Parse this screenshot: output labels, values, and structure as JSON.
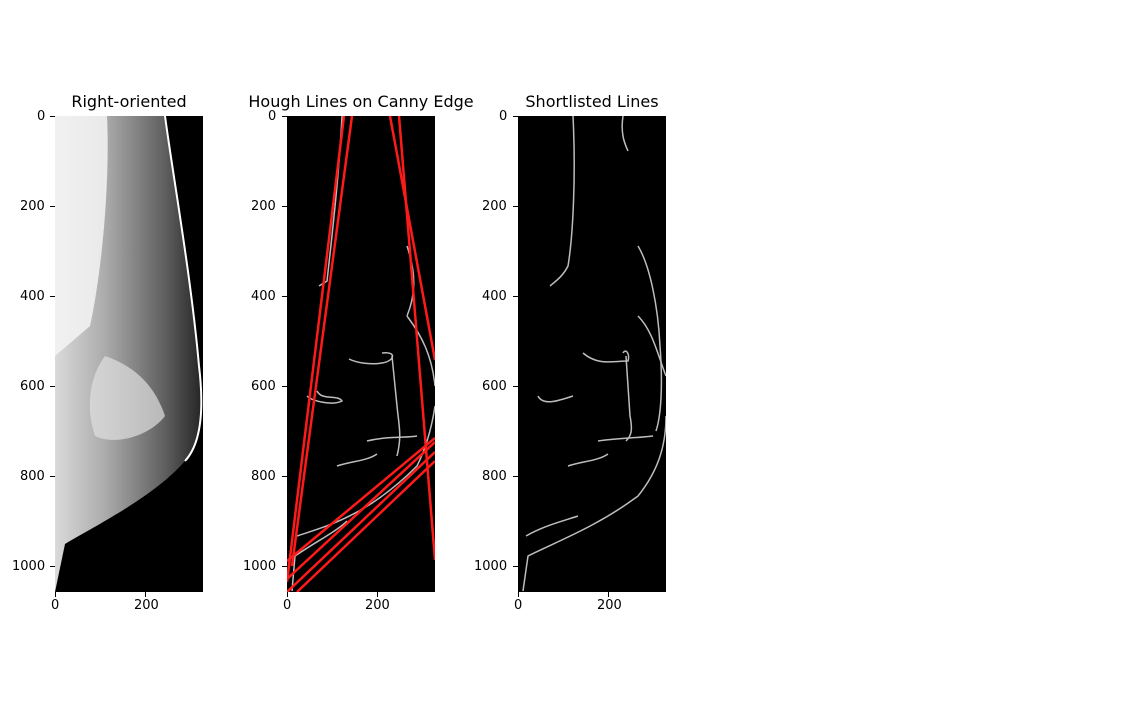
{
  "panels": [
    {
      "title": "Right-oriented",
      "image": "grayscale-mammogram-image",
      "x_ticks": [
        "0",
        "200"
      ],
      "y_ticks": [
        "0",
        "200",
        "400",
        "600",
        "800",
        "1000"
      ]
    },
    {
      "title": "Hough Lines on Canny Edge",
      "image": "canny-edges-with-red-hough-lines",
      "x_ticks": [
        "0",
        "200"
      ],
      "y_ticks": [
        "0",
        "200",
        "400",
        "600",
        "800",
        "1000"
      ]
    },
    {
      "title": "Shortlisted Lines",
      "image": "canny-edges-shortlisted",
      "x_ticks": [
        "0",
        "200"
      ],
      "y_ticks": [
        "0",
        "200",
        "400",
        "600",
        "800",
        "1000"
      ]
    }
  ],
  "colors": {
    "background": "#000000",
    "edge": "#bdbdbd",
    "hough_line": "#ff1a1a"
  }
}
